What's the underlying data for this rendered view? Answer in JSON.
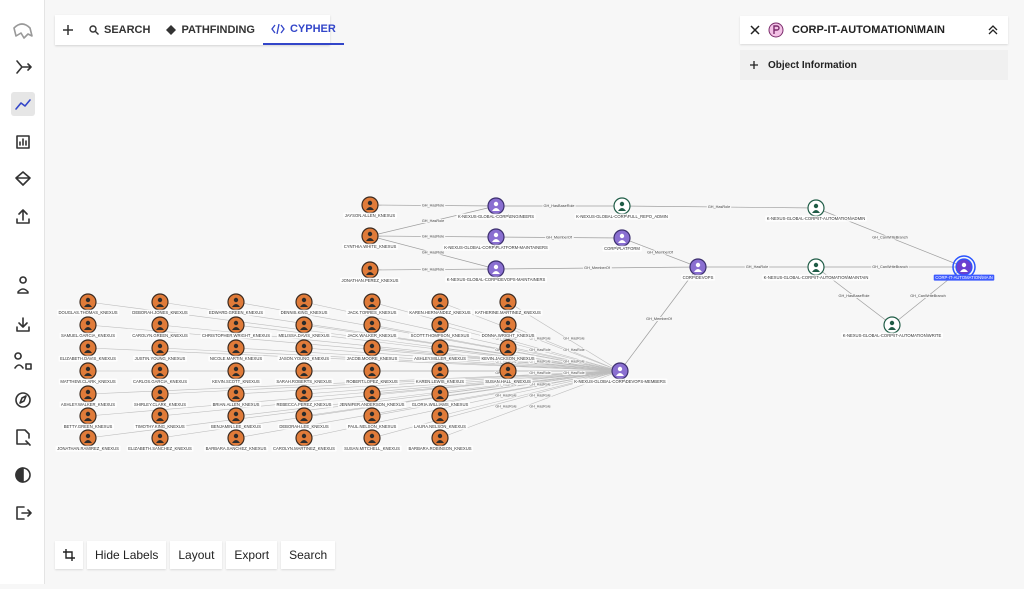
{
  "tabs": [
    "SEARCH",
    "PATHFINDING",
    "CYPHER"
  ],
  "panel": {
    "title": "CORP-IT-AUTOMATION\\MAIN",
    "section": "Object Information"
  },
  "toolbar": [
    "Hide Labels",
    "Layout",
    "Export",
    "Search"
  ],
  "graph": {
    "nodes": [
      {
        "label": "JAYSON.ALLEN_KNEXUS",
        "kind": "user"
      },
      {
        "label": "CYNTHIA.WHITE_KNEXUS",
        "kind": "user"
      },
      {
        "label": "JONATHAN.PEREZ_KNEXUS",
        "kind": "user"
      },
      {
        "label": "K-NEXUS-GLOBAL-CORP\\ENGINEERS",
        "kind": "team"
      },
      {
        "label": "K-NEXUS-GLOBAL-CORP\\PLATFORM-MAINTAINERS",
        "kind": "team"
      },
      {
        "label": "K-NEXUS-GLOBAL-CORP\\DEVOPS-MAINTAINERS",
        "kind": "team"
      },
      {
        "label": "K-NEXUS-GLOBAL-CORP\\FULL_REPO_ADMIN",
        "kind": "role"
      },
      {
        "label": "CORP\\PLATFORM",
        "kind": "team"
      },
      {
        "label": "CORP\\DEVOPS",
        "kind": "team"
      },
      {
        "label": "K-NEXUS-GLOBAL-CORP\\IT-AUTOMATION\\ADMIN",
        "kind": "role"
      },
      {
        "label": "K-NEXUS-GLOBAL-CORP\\IT-AUTOMATION\\MAINTAIN",
        "kind": "role"
      },
      {
        "label": "CORP-IT-AUTOMATION\\MAIN",
        "kind": "target"
      },
      {
        "label": "K-NEXUS-GLOBAL-CORP\\IT-AUTOMATION\\WRITE",
        "kind": "role"
      },
      {
        "label": "K-NEXUS-GLOBAL-CORP\\DEVOPS-MEMBERS",
        "kind": "team"
      }
    ],
    "edges": [
      {
        "from": 0,
        "to": 3,
        "label": "GH_HasRole"
      },
      {
        "from": 1,
        "to": 3,
        "label": "GH_HasRole"
      },
      {
        "from": 1,
        "to": 4,
        "label": "GH_HasRole"
      },
      {
        "from": 1,
        "to": 5,
        "label": "GH_HasRole"
      },
      {
        "from": 2,
        "to": 5,
        "label": "GH_HasRole"
      },
      {
        "from": 3,
        "to": 6,
        "label": "GH_HasBaseRole"
      },
      {
        "from": 4,
        "to": 7,
        "label": "GH_MemberOf"
      },
      {
        "from": 7,
        "to": 8,
        "label": "GH_MemberOf"
      },
      {
        "from": 5,
        "to": 8,
        "label": "GH_MemberOf"
      },
      {
        "from": 6,
        "to": 9,
        "label": "GH_HasRole"
      },
      {
        "from": 8,
        "to": 10,
        "label": "GH_HasRole"
      },
      {
        "from": 9,
        "to": 11,
        "label": "GH_CanWriteBranch"
      },
      {
        "from": 10,
        "to": 11,
        "label": "GH_CanWriteBranch"
      },
      {
        "from": 10,
        "to": 12,
        "label": "GH_HasBaseRole"
      },
      {
        "from": 11,
        "to": 12,
        "label": "GH_CanWriteBranch"
      },
      {
        "from": 13,
        "to": 8,
        "label": "GH_MemberOf"
      }
    ],
    "user_edge_label": "GH_HasRole",
    "user_rows": [
      [
        "DOUGLAS.THOMAS_KNEXUS",
        "DEBORAH.JONES_KNEXUS",
        "EDWARD.GREEN_KNEXUS",
        "DENNIS.KING_KNEXUS",
        "JACK.TORRES_KNEXUS",
        "KAREN.HERNANDEZ_KNEXUS",
        "KATHERINE.MARTINEZ_KNEXUS"
      ],
      [
        "SAMUEL.GARCIA_KNEXUS",
        "CAROLYN.GREEN_KNEXUS",
        "CHRISTOPHER.WRIGHT_KNEXUS",
        "MELISSA.DAVIS_KNEXUS",
        "JACK.WALKER_KNEXUS",
        "SCOTT.THOMPSON_KNEXUS",
        "DONNA.WRIGHT_KNEXUS"
      ],
      [
        "ELIZABETH.DAVIS_KNEXUS",
        "JUSTIN.YOUNG_KNEXUS",
        "NICOLE.MARTIN_KNEXUS",
        "JASON.YOUNG_KNEXUS",
        "JACOB.MOORE_KNEXUS",
        "ASHLEY.MILLER_KNEXUS",
        "KEVIN.JACKSON_KNEXUS"
      ],
      [
        "MATTHEW.CLARK_KNEXUS",
        "CARLOS.GARCIA_KNEXUS",
        "KEVIN.SCOTT_KNEXUS",
        "SARAH.ROBERTS_KNEXUS",
        "ROBERT.LOPEZ_KNEXUS",
        "KAREN.LEWIS_KNEXUS",
        "SUSAN.HALL_KNEXUS"
      ],
      [
        "ASHLEY.WALKER_KNEXUS",
        "SHIRLEY.CLARK_KNEXUS",
        "BRIAN.ALLEN_KNEXUS",
        "REBECCA.PEREZ_KNEXUS",
        "JENNIFER.ANDERSON_KNEXUS",
        "GLORIA.WILLIAMS_KNEXUS"
      ],
      [
        "BETTY.GREEN_KNEXUS",
        "TIMOTHY.KING_KNEXUS",
        "BENJAMIN.LEE_KNEXUS",
        "DEBORAH.LEE_KNEXUS",
        "PAUL.NELSON_KNEXUS",
        "LAURA.NELSON_KNEXUS"
      ],
      [
        "JONATHAN.RAMIREZ_KNEXUS",
        "ELIZABETH.SANCHEZ_KNEXUS",
        "BARBARA.SANCHEZ_KNEXUS",
        "CAROLYN.MARTINEZ_KNEXUS",
        "SUSAN.MITCHELL_KNEXUS",
        "BARBARA.ROBINSON_KNEXUS"
      ]
    ]
  }
}
